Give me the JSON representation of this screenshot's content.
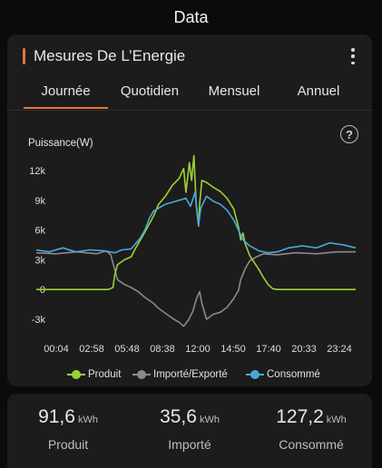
{
  "app": {
    "title": "Data"
  },
  "card": {
    "title": "Mesures De L’Energie",
    "tabs": [
      {
        "label": "Journée",
        "active": true
      },
      {
        "label": "Quotidien"
      },
      {
        "label": "Mensuel"
      },
      {
        "label": "Annuel"
      }
    ]
  },
  "colors": {
    "accent": "#e8743b",
    "produit": "#9bd138",
    "importe": "#8a8a8a",
    "consomme": "#4aa8d8"
  },
  "chart_data": {
    "type": "line",
    "ylabel": "Puissance(W)",
    "ylim": [
      -3000,
      12000
    ],
    "yticks": [
      12000,
      9000,
      6000,
      3000,
      0,
      -3000
    ],
    "ytick_labels": [
      "12k",
      "9k",
      "6k",
      "3k",
      "0",
      "-3k"
    ],
    "xlim": [
      "00:04",
      "23:24"
    ],
    "xtick_labels": [
      "00:04",
      "02:58",
      "05:48",
      "08:38",
      "12:00",
      "14:50",
      "17:40",
      "20:33",
      "23:24"
    ],
    "legend": [
      "Produit",
      "Importé/Exporté",
      "Consommé"
    ],
    "legend_position": "bottom",
    "grid": false,
    "series": [
      {
        "name": "Produit",
        "color": "#9bd138",
        "points": [
          [
            "00:04",
            0
          ],
          [
            "05:20",
            0
          ],
          [
            "05:40",
            200
          ],
          [
            "05:48",
            1500
          ],
          [
            "06:00",
            2500
          ],
          [
            "06:30",
            3000
          ],
          [
            "07:00",
            3300
          ],
          [
            "07:20",
            4200
          ],
          [
            "07:40",
            5000
          ],
          [
            "08:00",
            5800
          ],
          [
            "08:38",
            7400
          ],
          [
            "09:00",
            8600
          ],
          [
            "09:30",
            9400
          ],
          [
            "10:00",
            10500
          ],
          [
            "10:30",
            11200
          ],
          [
            "10:50",
            12200
          ],
          [
            "11:00",
            9800
          ],
          [
            "11:15",
            12800
          ],
          [
            "11:25",
            11000
          ],
          [
            "11:35",
            13500
          ],
          [
            "11:45",
            8500
          ],
          [
            "11:55",
            6400
          ],
          [
            "12:00",
            8600
          ],
          [
            "12:10",
            11000
          ],
          [
            "12:30",
            10800
          ],
          [
            "13:00",
            10300
          ],
          [
            "13:30",
            9900
          ],
          [
            "14:00",
            9200
          ],
          [
            "14:30",
            8100
          ],
          [
            "14:50",
            6300
          ],
          [
            "15:00",
            5000
          ],
          [
            "15:10",
            5700
          ],
          [
            "15:20",
            4600
          ],
          [
            "15:40",
            3400
          ],
          [
            "16:00",
            2700
          ],
          [
            "16:20",
            2000
          ],
          [
            "16:40",
            1200
          ],
          [
            "17:00",
            500
          ],
          [
            "17:20",
            80
          ],
          [
            "17:40",
            0
          ],
          [
            "23:24",
            0
          ]
        ]
      },
      {
        "name": "Importé/Exporté",
        "color": "#8a8a8a",
        "points": [
          [
            "00:04",
            3700
          ],
          [
            "01:30",
            3600
          ],
          [
            "03:00",
            3800
          ],
          [
            "04:30",
            3600
          ],
          [
            "05:10",
            3900
          ],
          [
            "05:30",
            3500
          ],
          [
            "05:48",
            2000
          ],
          [
            "06:00",
            1000
          ],
          [
            "06:30",
            500
          ],
          [
            "07:00",
            200
          ],
          [
            "07:30",
            -200
          ],
          [
            "08:00",
            -800
          ],
          [
            "08:38",
            -1400
          ],
          [
            "09:00",
            -1900
          ],
          [
            "09:30",
            -2400
          ],
          [
            "10:00",
            -2900
          ],
          [
            "10:30",
            -3300
          ],
          [
            "10:50",
            -3700
          ],
          [
            "11:10",
            -3100
          ],
          [
            "11:30",
            -2200
          ],
          [
            "11:45",
            -1000
          ],
          [
            "12:00",
            -200
          ],
          [
            "12:10",
            -1400
          ],
          [
            "12:30",
            -3000
          ],
          [
            "13:00",
            -2500
          ],
          [
            "13:30",
            -2300
          ],
          [
            "14:00",
            -1800
          ],
          [
            "14:30",
            -900
          ],
          [
            "14:50",
            -100
          ],
          [
            "15:00",
            1000
          ],
          [
            "15:20",
            2100
          ],
          [
            "15:40",
            2900
          ],
          [
            "16:10",
            3300
          ],
          [
            "16:40",
            3600
          ],
          [
            "17:40",
            3500
          ],
          [
            "19:00",
            3700
          ],
          [
            "20:33",
            3600
          ],
          [
            "22:00",
            3800
          ],
          [
            "23:24",
            3800
          ]
        ]
      },
      {
        "name": "Consommé",
        "color": "#4aa8d8",
        "points": [
          [
            "00:04",
            4000
          ],
          [
            "01:00",
            3800
          ],
          [
            "02:00",
            4200
          ],
          [
            "02:58",
            3800
          ],
          [
            "04:00",
            4000
          ],
          [
            "05:00",
            3900
          ],
          [
            "05:48",
            3700
          ],
          [
            "06:20",
            4000
          ],
          [
            "07:00",
            4100
          ],
          [
            "07:40",
            5200
          ],
          [
            "08:00",
            6000
          ],
          [
            "08:20",
            7200
          ],
          [
            "08:38",
            7900
          ],
          [
            "09:00",
            8200
          ],
          [
            "09:30",
            8600
          ],
          [
            "10:00",
            8800
          ],
          [
            "10:30",
            9000
          ],
          [
            "11:00",
            9200
          ],
          [
            "11:20",
            8400
          ],
          [
            "11:40",
            9800
          ],
          [
            "11:55",
            6500
          ],
          [
            "12:05",
            8200
          ],
          [
            "12:30",
            9400
          ],
          [
            "13:00",
            8900
          ],
          [
            "13:30",
            8600
          ],
          [
            "14:00",
            8000
          ],
          [
            "14:30",
            7000
          ],
          [
            "14:50",
            6000
          ],
          [
            "15:10",
            5000
          ],
          [
            "15:40",
            4400
          ],
          [
            "16:20",
            3900
          ],
          [
            "17:00",
            3700
          ],
          [
            "17:40",
            3800
          ],
          [
            "18:30",
            4200
          ],
          [
            "19:30",
            4400
          ],
          [
            "20:33",
            4200
          ],
          [
            "21:30",
            4700
          ],
          [
            "22:30",
            4500
          ],
          [
            "23:24",
            4200
          ]
        ]
      }
    ]
  },
  "stats": [
    {
      "value": "91,6",
      "unit": "kWh",
      "label": "Produit"
    },
    {
      "value": "35,6",
      "unit": "kWh",
      "label": "Importé"
    },
    {
      "value": "127,2",
      "unit": "kWh",
      "label": "Consommé"
    }
  ]
}
